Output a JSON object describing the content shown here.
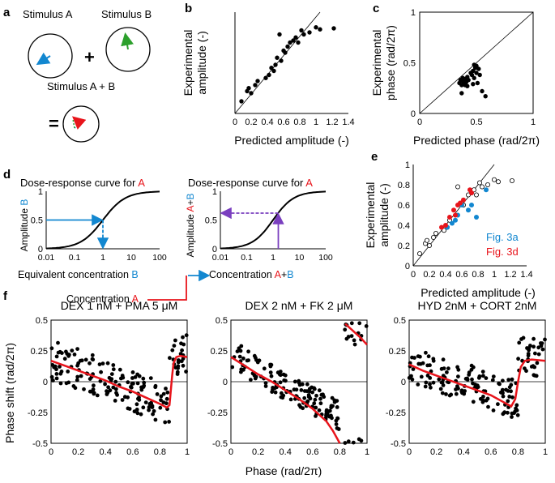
{
  "figure": {
    "panel_labels": {
      "a": "a",
      "b": "b",
      "c": "c",
      "d": "d",
      "e": "e",
      "f": "f"
    },
    "colors": {
      "red": "#e8141b",
      "blue": "#1287d0",
      "green": "#2ca02c",
      "purple": "#7a3fbf",
      "curve_red": "#e8141b"
    }
  },
  "panel_a": {
    "stimulus_a_label": "Stimulus A",
    "stimulus_b_label": "Stimulus B",
    "plus_sign": "+",
    "stimulus_ab_label": "Stimulus A + B",
    "equals_sign": "="
  },
  "panel_d": {
    "left_title_prefix": "Dose-response curve for ",
    "left_title_letter": "A",
    "right_title_prefix": "Dose-response curve for ",
    "right_title_letter": "A",
    "left_ylabel_prefix": "Amplitude ",
    "left_ylabel_letter": "B",
    "right_ylabel_prefix": "Amplitude ",
    "right_ylabel_a": "A",
    "right_ylabel_plus": "+",
    "right_ylabel_b": "B",
    "left_xlabel_prefix": "Equivalent concentration ",
    "left_xlabel_letter": "B",
    "right_xlabel_prefix": "Concentration ",
    "right_xlabel_a": "A",
    "right_xlabel_plus": "+",
    "right_xlabel_b": "B",
    "concentration_prefix": "Concentration ",
    "concentration_letter": "A",
    "x_ticks": [
      "0.01",
      "0.1",
      "1",
      "10",
      "100"
    ],
    "y_ticks": [
      "0",
      "0.5",
      "1"
    ]
  },
  "chart_data": [
    {
      "id": "b",
      "type": "scatter",
      "xlabel": "Predicted amplitude (-)",
      "ylabel": "Experimental amplitude (-)",
      "ylabel_lines": [
        "Experimental",
        "amplitude (-)"
      ],
      "xlim": [
        0,
        1.4
      ],
      "ylim": [
        0,
        1
      ],
      "x_ticks": [
        "0",
        "0.2",
        "0.4",
        "0.6",
        "0.8",
        "1",
        "1.2",
        "1.4"
      ],
      "y_ticks": [],
      "identity_line": true,
      "x": [
        0.08,
        0.15,
        0.17,
        0.2,
        0.25,
        0.28,
        0.38,
        0.42,
        0.45,
        0.48,
        0.5,
        0.52,
        0.55,
        0.57,
        0.6,
        0.62,
        0.65,
        0.68,
        0.72,
        0.75,
        0.78,
        0.82,
        0.85,
        0.92,
        1.0,
        1.05,
        1.22
      ],
      "y": [
        0.12,
        0.22,
        0.25,
        0.2,
        0.28,
        0.32,
        0.35,
        0.38,
        0.45,
        0.42,
        0.48,
        0.55,
        0.78,
        0.52,
        0.62,
        0.6,
        0.66,
        0.7,
        0.72,
        0.75,
        0.7,
        0.82,
        0.78,
        0.8,
        0.85,
        0.83,
        0.84
      ]
    },
    {
      "id": "c",
      "type": "scatter",
      "xlabel": "Predicted phase  (rad/2π)",
      "ylabel_lines": [
        "Experimental",
        "phase  (rad/2π)"
      ],
      "xlim": [
        0,
        1
      ],
      "ylim": [
        0,
        1
      ],
      "x_ticks": [
        "0",
        "0.5",
        "1"
      ],
      "y_ticks": [
        "0",
        "0.5",
        "1"
      ],
      "identity_line": true,
      "x": [
        0.35,
        0.36,
        0.37,
        0.38,
        0.38,
        0.39,
        0.4,
        0.4,
        0.41,
        0.42,
        0.43,
        0.45,
        0.46,
        0.47,
        0.48,
        0.48,
        0.49,
        0.5,
        0.51,
        0.52,
        0.53,
        0.55,
        0.58,
        0.37,
        0.42,
        0.47,
        0.5
      ],
      "y": [
        0.3,
        0.33,
        0.28,
        0.35,
        0.32,
        0.3,
        0.34,
        0.28,
        0.31,
        0.36,
        0.33,
        0.4,
        0.38,
        0.42,
        0.48,
        0.35,
        0.45,
        0.4,
        0.3,
        0.44,
        0.38,
        0.22,
        0.17,
        0.2,
        0.27,
        0.29,
        0.47
      ]
    },
    {
      "id": "e",
      "type": "scatter",
      "xlabel": "Predicted amplitude (-)",
      "ylabel_lines": [
        "Experimental",
        "amplitude (-)"
      ],
      "xlim": [
        0,
        1.4
      ],
      "ylim": [
        0,
        1
      ],
      "x_ticks": [
        "0",
        "0.2",
        "0.4",
        "0.6",
        "0.8",
        "1",
        "1.2",
        "1.4"
      ],
      "y_ticks": [
        "0",
        "0.2",
        "0.4",
        "0.6",
        "0.8",
        "1"
      ],
      "identity_line": true,
      "legend": [
        "Fig. 3a",
        "Fig. 3d"
      ],
      "series": [
        {
          "name": "open",
          "x": [
            0.08,
            0.15,
            0.17,
            0.2,
            0.25,
            0.28,
            0.38,
            0.42,
            0.45,
            0.55,
            0.6,
            0.62,
            0.68,
            0.72,
            0.75,
            0.78,
            0.82,
            0.85,
            0.92,
            1.0,
            1.05,
            1.22
          ],
          "y": [
            0.12,
            0.22,
            0.25,
            0.2,
            0.28,
            0.32,
            0.35,
            0.38,
            0.45,
            0.78,
            0.62,
            0.6,
            0.7,
            0.72,
            0.75,
            0.7,
            0.82,
            0.78,
            0.8,
            0.85,
            0.83,
            0.84
          ]
        },
        {
          "name": "Fig. 3a",
          "x": [
            0.42,
            0.48,
            0.52,
            0.55,
            0.6,
            0.68,
            0.72,
            0.78,
            0.9
          ],
          "y": [
            0.38,
            0.42,
            0.45,
            0.5,
            0.6,
            0.55,
            0.6,
            0.48,
            0.75
          ]
        },
        {
          "name": "Fig. 3d",
          "x": [
            0.35,
            0.4,
            0.45,
            0.5,
            0.52,
            0.55,
            0.58,
            0.62,
            0.7,
            0.72
          ],
          "y": [
            0.38,
            0.4,
            0.48,
            0.55,
            0.5,
            0.6,
            0.62,
            0.65,
            0.75,
            0.72
          ]
        }
      ]
    },
    {
      "id": "f1",
      "type": "scatter",
      "title": "DEX 1 nM + PMA 5 μM",
      "xlim": [
        0,
        1
      ],
      "ylim": [
        -0.5,
        0.5
      ],
      "x_ticks": [
        "0",
        "0.2",
        "0.4",
        "0.6",
        "0.8",
        "1"
      ],
      "y_ticks": [
        "0.5",
        "0.25",
        "0",
        "-0.25",
        "-0.5"
      ],
      "curve_x": [
        0,
        0.1,
        0.2,
        0.3,
        0.4,
        0.5,
        0.6,
        0.7,
        0.8,
        0.85,
        0.87,
        0.89,
        0.9,
        0.92,
        0.95,
        1.0
      ],
      "curve_y": [
        0.17,
        0.13,
        0.09,
        0.05,
        0.01,
        -0.04,
        -0.08,
        -0.13,
        -0.18,
        -0.21,
        -0.19,
        0.05,
        0.15,
        0.2,
        0.21,
        0.2
      ],
      "scatter_seed": 11,
      "scatter_slope": -0.42,
      "scatter_intercept": 0.18,
      "scatter_noise": 0.17,
      "scatter_count": 170,
      "break": 0.87,
      "after_break": 0.22
    },
    {
      "id": "f2",
      "type": "scatter",
      "title": "DEX 2 nM + FK 2 μM",
      "xlim": [
        0,
        1
      ],
      "ylim": [
        -0.5,
        0.5
      ],
      "x_ticks": [
        "0",
        "0.2",
        "0.4",
        "0.6",
        "0.8",
        "1"
      ],
      "y_ticks": [
        "0.5",
        "0.25",
        "0",
        "-0.25",
        "-0.5"
      ],
      "curve_x": [
        0,
        0.1,
        0.2,
        0.3,
        0.4,
        0.5,
        0.6,
        0.7,
        0.75,
        0.8
      ],
      "curve_y": [
        0.2,
        0.13,
        0.06,
        0.0,
        -0.07,
        -0.14,
        -0.22,
        -0.32,
        -0.4,
        -0.5
      ],
      "curve2_x": [
        0.84,
        0.9,
        0.95,
        1.0
      ],
      "curve2_y": [
        0.47,
        0.41,
        0.36,
        0.3
      ],
      "scatter_seed": 23,
      "scatter_slope": -0.62,
      "scatter_intercept": 0.22,
      "scatter_noise": 0.12,
      "scatter_count": 160,
      "break": 0.83,
      "after_break": 0.42
    },
    {
      "id": "f3",
      "type": "scatter",
      "title": "HYD 2nM + CORT 2nM",
      "xlim": [
        0,
        1
      ],
      "ylim": [
        -0.5,
        0.5
      ],
      "x_ticks": [
        "0",
        "0.2",
        "0.4",
        "0.6",
        "0.8",
        "1"
      ],
      "y_ticks": [
        "0.5",
        "0.25",
        "0",
        "-0.25",
        "-0.5"
      ],
      "curve_x": [
        0,
        0.1,
        0.2,
        0.3,
        0.4,
        0.5,
        0.6,
        0.7,
        0.75,
        0.78,
        0.8,
        0.82,
        0.85,
        0.9,
        1.0
      ],
      "curve_y": [
        0.14,
        0.09,
        0.05,
        0.01,
        -0.03,
        -0.07,
        -0.11,
        -0.17,
        -0.2,
        -0.14,
        0.0,
        0.12,
        0.17,
        0.18,
        0.17
      ],
      "scatter_seed": 37,
      "scatter_slope": -0.38,
      "scatter_intercept": 0.15,
      "scatter_noise": 0.16,
      "scatter_count": 165,
      "break": 0.8,
      "after_break": 0.2
    }
  ],
  "panel_f": {
    "ylabel": "Phase shift (rad/2π)",
    "xlabel": "Phase  (rad/2π)"
  }
}
